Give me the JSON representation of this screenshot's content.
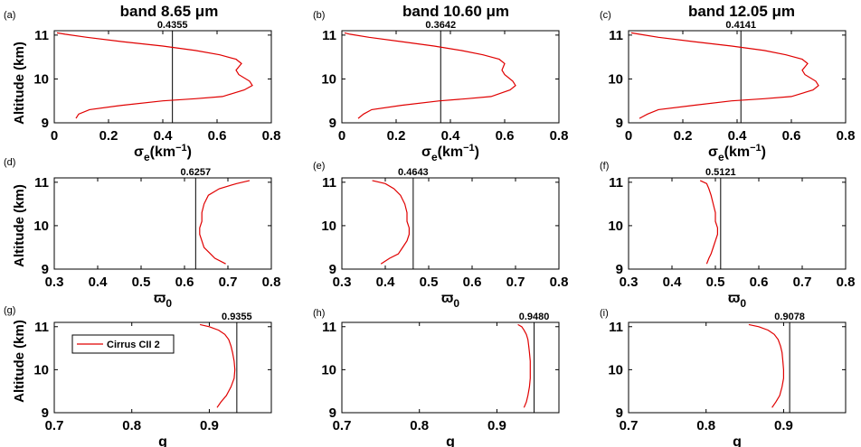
{
  "figure": {
    "colors": {
      "profile": "#e00000",
      "reference": "#000000",
      "axes": "#000000"
    },
    "rows": [
      {
        "ylabel": "Altitude (km)",
        "xlabel": {
          "sym": "σ",
          "sub": "e",
          "unit": "(km",
          "sup": "−1",
          "close": ")"
        },
        "xlim": [
          0,
          0.8
        ],
        "xticks": [
          0,
          0.2,
          0.4,
          0.6,
          0.8
        ],
        "xtick_labels": [
          "0",
          "0.2",
          "0.4",
          "0.6",
          "0.8"
        ]
      },
      {
        "ylabel": "Altitude (km)",
        "xlabel": {
          "sym": "ϖ",
          "sub": "0"
        },
        "xlim": [
          0.3,
          0.8
        ],
        "xticks": [
          0.3,
          0.4,
          0.5,
          0.6,
          0.7,
          0.8
        ],
        "xtick_labels": [
          "0.3",
          "0.4",
          "0.5",
          "0.6",
          "0.7",
          "0.8"
        ]
      },
      {
        "ylabel": "Altitude (km)",
        "xlabel": {
          "sym": "g"
        },
        "xlim": [
          0.7,
          0.98
        ],
        "xticks": [
          0.7,
          0.8,
          0.9
        ],
        "xtick_labels": [
          "0.7",
          "0.8",
          "0.9"
        ]
      }
    ],
    "columns": [
      {
        "title": "band 8.65 μm"
      },
      {
        "title": "band 10.60 μm"
      },
      {
        "title": "band 12.05 μm"
      }
    ],
    "legend": {
      "label": "Cirrus CII 2"
    }
  },
  "chart_data": [
    {
      "panel_label": "(a)",
      "type": "line",
      "title": "band 8.65 μm",
      "ylim": [
        9,
        11.1
      ],
      "yticks": [
        9,
        10,
        11
      ],
      "reference_value": "0.4355",
      "series": [
        {
          "name": "Cirrus CII 2",
          "x": [
            0.08,
            0.09,
            0.13,
            0.25,
            0.4,
            0.52,
            0.62,
            0.7,
            0.73,
            0.72,
            0.68,
            0.67,
            0.69,
            0.67,
            0.61,
            0.52,
            0.4,
            0.25,
            0.12,
            0.04,
            0.01
          ],
          "y": [
            9.1,
            9.2,
            9.3,
            9.4,
            9.5,
            9.55,
            9.6,
            9.75,
            9.85,
            9.95,
            10.1,
            10.2,
            10.35,
            10.45,
            10.55,
            10.65,
            10.75,
            10.85,
            10.95,
            11.02,
            11.05
          ]
        }
      ]
    },
    {
      "panel_label": "(b)",
      "type": "line",
      "title": "band 10.60 μm",
      "ylim": [
        9,
        11.1
      ],
      "yticks": [
        9,
        10,
        11
      ],
      "reference_value": "0.3642",
      "series": [
        {
          "name": "Cirrus CII 2",
          "x": [
            0.06,
            0.08,
            0.11,
            0.22,
            0.36,
            0.46,
            0.55,
            0.62,
            0.64,
            0.63,
            0.6,
            0.59,
            0.6,
            0.58,
            0.52,
            0.44,
            0.34,
            0.22,
            0.1,
            0.03,
            0.01
          ],
          "y": [
            9.1,
            9.2,
            9.3,
            9.4,
            9.5,
            9.55,
            9.6,
            9.75,
            9.85,
            9.95,
            10.1,
            10.2,
            10.35,
            10.45,
            10.55,
            10.65,
            10.75,
            10.85,
            10.95,
            11.02,
            11.05
          ]
        }
      ]
    },
    {
      "panel_label": "(c)",
      "type": "line",
      "title": "band 12.05 μm",
      "ylim": [
        9,
        11.1
      ],
      "yticks": [
        9,
        10,
        11
      ],
      "reference_value": "0.4141",
      "series": [
        {
          "name": "Cirrus CII 2",
          "x": [
            0.04,
            0.07,
            0.11,
            0.24,
            0.38,
            0.5,
            0.6,
            0.68,
            0.7,
            0.69,
            0.65,
            0.64,
            0.66,
            0.64,
            0.58,
            0.5,
            0.38,
            0.24,
            0.11,
            0.04,
            0.01
          ],
          "y": [
            9.1,
            9.2,
            9.3,
            9.4,
            9.5,
            9.55,
            9.6,
            9.75,
            9.85,
            9.95,
            10.1,
            10.2,
            10.35,
            10.45,
            10.55,
            10.65,
            10.75,
            10.85,
            10.95,
            11.02,
            11.05
          ]
        }
      ]
    },
    {
      "panel_label": "(d)",
      "type": "line",
      "ylim": [
        9,
        11.1
      ],
      "yticks": [
        9,
        10,
        11
      ],
      "reference_value": "0.6257",
      "series": [
        {
          "name": "Cirrus CII 2",
          "x": [
            0.695,
            0.67,
            0.66,
            0.645,
            0.64,
            0.635,
            0.635,
            0.64,
            0.64,
            0.645,
            0.655,
            0.68,
            0.72,
            0.75
          ],
          "y": [
            9.12,
            9.25,
            9.35,
            9.5,
            9.65,
            9.8,
            9.95,
            10.1,
            10.3,
            10.5,
            10.7,
            10.85,
            10.97,
            11.04
          ]
        }
      ]
    },
    {
      "panel_label": "(e)",
      "type": "line",
      "ylim": [
        9,
        11.1
      ],
      "yticks": [
        9,
        10,
        11
      ],
      "reference_value": "0.4643",
      "series": [
        {
          "name": "Cirrus CII 2",
          "x": [
            0.39,
            0.41,
            0.43,
            0.44,
            0.45,
            0.455,
            0.455,
            0.45,
            0.45,
            0.445,
            0.435,
            0.42,
            0.4,
            0.37
          ],
          "y": [
            9.12,
            9.25,
            9.35,
            9.5,
            9.65,
            9.8,
            9.95,
            10.1,
            10.3,
            10.5,
            10.7,
            10.85,
            10.97,
            11.04
          ]
        }
      ]
    },
    {
      "panel_label": "(f)",
      "type": "line",
      "ylim": [
        9,
        11.1
      ],
      "yticks": [
        9,
        10,
        11
      ],
      "reference_value": "0.5121",
      "series": [
        {
          "name": "Cirrus CII 2",
          "x": [
            0.48,
            0.485,
            0.49,
            0.495,
            0.5,
            0.505,
            0.505,
            0.5,
            0.5,
            0.495,
            0.49,
            0.485,
            0.48,
            0.465
          ],
          "y": [
            9.12,
            9.25,
            9.35,
            9.5,
            9.65,
            9.8,
            9.95,
            10.1,
            10.3,
            10.5,
            10.7,
            10.85,
            10.97,
            11.04
          ]
        }
      ]
    },
    {
      "panel_label": "(g)",
      "type": "line",
      "ylim": [
        9,
        11.1
      ],
      "yticks": [
        9,
        10,
        11
      ],
      "reference_value": "0.9355",
      "series": [
        {
          "name": "Cirrus CII 2",
          "x": [
            0.91,
            0.915,
            0.922,
            0.928,
            0.932,
            0.933,
            0.932,
            0.93,
            0.928,
            0.925,
            0.92,
            0.912,
            0.9,
            0.888
          ],
          "y": [
            9.12,
            9.25,
            9.4,
            9.6,
            9.8,
            10.0,
            10.2,
            10.4,
            10.55,
            10.7,
            10.82,
            10.92,
            11.0,
            11.05
          ]
        }
      ]
    },
    {
      "panel_label": "(h)",
      "type": "line",
      "ylim": [
        9,
        11.1
      ],
      "yticks": [
        9,
        10,
        11
      ],
      "reference_value": "0.9480",
      "series": [
        {
          "name": "Cirrus CII 2",
          "x": [
            0.935,
            0.938,
            0.94,
            0.942,
            0.943,
            0.943,
            0.943,
            0.942,
            0.941,
            0.94,
            0.938,
            0.935,
            0.932,
            0.927
          ],
          "y": [
            9.12,
            9.25,
            9.4,
            9.6,
            9.8,
            10.0,
            10.2,
            10.4,
            10.55,
            10.7,
            10.82,
            10.92,
            11.0,
            11.05
          ]
        }
      ]
    },
    {
      "panel_label": "(i)",
      "type": "line",
      "ylim": [
        9,
        11.1
      ],
      "yticks": [
        9,
        10,
        11
      ],
      "reference_value": "0.9078",
      "series": [
        {
          "name": "Cirrus CII 2",
          "x": [
            0.885,
            0.89,
            0.895,
            0.898,
            0.9,
            0.9,
            0.899,
            0.898,
            0.896,
            0.893,
            0.888,
            0.88,
            0.868,
            0.855
          ],
          "y": [
            9.12,
            9.25,
            9.4,
            9.6,
            9.8,
            10.0,
            10.2,
            10.4,
            10.55,
            10.7,
            10.82,
            10.92,
            11.0,
            11.05
          ]
        }
      ]
    }
  ]
}
